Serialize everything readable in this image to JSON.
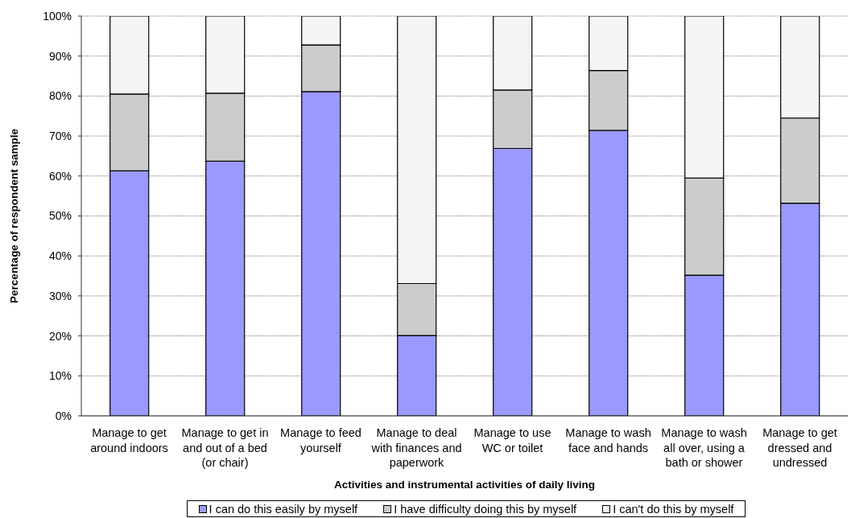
{
  "chart_data": {
    "type": "bar",
    "stacked": true,
    "xlabel": "Activities and instrumental activities of daily living",
    "ylabel": "Percentage of respondent sample",
    "categories": [
      "Manage to get around indoors",
      "Manage to get in and out of a bed (or chair)",
      "Manage to feed yourself",
      "Manage to deal with finances and paperwork",
      "Manage to use WC or toilet",
      "Manage to wash face and hands",
      "Manage to wash all over, using a bath or shower",
      "Manage to get dressed and undressed"
    ],
    "series": [
      {
        "name": "I can do this easily by myself",
        "color": "#9999ff",
        "values": [
          61.3,
          63.7,
          81.1,
          20.1,
          66.9,
          71.4,
          35.2,
          53.2
        ]
      },
      {
        "name": "I have difficulty doing this by myself",
        "color": "#cccccc",
        "values": [
          19.2,
          17.0,
          11.7,
          13.0,
          14.6,
          15.0,
          24.3,
          21.3
        ]
      },
      {
        "name": "I can't do this by myself",
        "color": "#f4f4f4",
        "values": [
          19.5,
          19.3,
          7.2,
          66.9,
          18.5,
          13.6,
          40.5,
          25.5
        ]
      }
    ],
    "ylim": [
      0,
      100
    ],
    "yticks": [
      {
        "value": 0,
        "label": "0%"
      },
      {
        "value": 10,
        "label": "10%"
      },
      {
        "value": 20,
        "label": "20%"
      },
      {
        "value": 30,
        "label": "30%"
      },
      {
        "value": 40,
        "label": "40%"
      },
      {
        "value": 50,
        "label": "50%"
      },
      {
        "value": 60,
        "label": "60%"
      },
      {
        "value": 70,
        "label": "70%"
      },
      {
        "value": 80,
        "label": "80%"
      },
      {
        "value": 90,
        "label": "90%"
      },
      {
        "value": 100,
        "label": "100%"
      }
    ],
    "grid": "y",
    "legend": "bottom"
  }
}
